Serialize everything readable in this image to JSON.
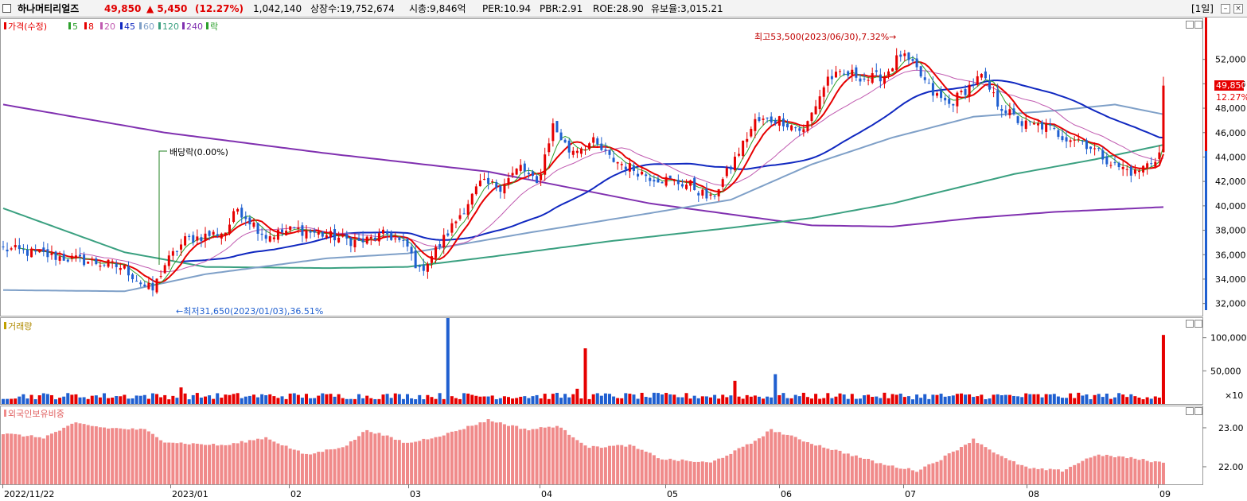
{
  "header": {
    "stock_name": "하나머티리얼즈",
    "price": "49,850",
    "change": "▲ 5,450",
    "change_pct": "(12.27%)",
    "volume": "1,042,140",
    "listed_shares": "상장수:19,752,674",
    "market_cap": "시총:9,846억",
    "per": "PER:10.94",
    "pbr": "PBR:2.91",
    "roe": "ROE:28.90",
    "retention": "유보율:3,015.21",
    "period": "[1일]"
  },
  "legend": {
    "price_label": "가격(수정)",
    "ma5": "5",
    "ma8": "8",
    "ma20": "20",
    "ma45": "45",
    "ma60": "60",
    "ma120": "120",
    "ma240": "240",
    "ex_label": "락",
    "volume_label": "거래량",
    "foreign_label": "외국인보유비중"
  },
  "colors": {
    "up": "#e60000",
    "down": "#1f5fd0",
    "ma5": "#2ca02c",
    "ma8": "#e60000",
    "ma20": "#c05ab0",
    "ma45": "#1028c0",
    "ma60": "#7fa0c8",
    "ma120": "#3aa080",
    "ma240": "#8030b0",
    "foreign_bar": "#f08a8a"
  },
  "chart_data": [
    {
      "type": "candlestick",
      "ylim": [
        31000,
        55300
      ],
      "y_ticks": [
        "52,000",
        "50,000",
        "48,000",
        "46,000",
        "44,000",
        "42,000",
        "40,000",
        "38,000",
        "36,000",
        "34,000",
        "32,000"
      ],
      "x_ticks": [
        "2022/11/22",
        "2023/01",
        "02",
        "03",
        "04",
        "05",
        "06",
        "07",
        "08",
        "09"
      ],
      "last_price_label": "49,850",
      "last_pct_label": "12.27%",
      "annotations": {
        "high": "최고53,500(2023/06/30),7.32%→",
        "low": "←최저31,650(2023/01/03),36.51%",
        "dividend": "배당락(0.00%)"
      },
      "anchors": [
        [
          0,
          36500
        ],
        [
          10,
          36000
        ],
        [
          18,
          35600
        ],
        [
          26,
          35200
        ],
        [
          30,
          34900
        ],
        [
          35,
          33400
        ],
        [
          37,
          33100
        ],
        [
          40,
          35200
        ],
        [
          45,
          37200
        ],
        [
          55,
          37900
        ],
        [
          58,
          39800
        ],
        [
          65,
          37500
        ],
        [
          72,
          38100
        ],
        [
          80,
          37600
        ],
        [
          88,
          37000
        ],
        [
          95,
          37700
        ],
        [
          100,
          36600
        ],
        [
          103,
          34600
        ],
        [
          108,
          36800
        ],
        [
          112,
          38800
        ],
        [
          118,
          41800
        ],
        [
          123,
          41600
        ],
        [
          128,
          43200
        ],
        [
          132,
          41700
        ],
        [
          136,
          46600
        ],
        [
          140,
          44500
        ],
        [
          146,
          45200
        ],
        [
          150,
          43900
        ],
        [
          160,
          42400
        ],
        [
          170,
          41700
        ],
        [
          175,
          40500
        ],
        [
          180,
          43200
        ],
        [
          186,
          46900
        ],
        [
          192,
          47100
        ],
        [
          198,
          46100
        ],
        [
          204,
          50500
        ],
        [
          210,
          50800
        ],
        [
          214,
          50400
        ],
        [
          218,
          50700
        ],
        [
          222,
          52400
        ],
        [
          226,
          51100
        ],
        [
          230,
          49200
        ],
        [
          234,
          48300
        ],
        [
          238,
          49500
        ],
        [
          242,
          50600
        ],
        [
          246,
          48400
        ],
        [
          252,
          46700
        ],
        [
          258,
          46500
        ],
        [
          262,
          45700
        ],
        [
          266,
          45500
        ],
        [
          270,
          44600
        ],
        [
          275,
          43300
        ],
        [
          280,
          42700
        ],
        [
          284,
          43600
        ],
        [
          286,
          44300
        ],
        [
          287,
          49850
        ]
      ],
      "moving_averages": {
        "ma120_anchors": [
          [
            0,
            39800
          ],
          [
            30,
            36200
          ],
          [
            50,
            35000
          ],
          [
            80,
            34900
          ],
          [
            100,
            35000
          ],
          [
            120,
            35800
          ],
          [
            150,
            37100
          ],
          [
            180,
            38200
          ],
          [
            200,
            39000
          ],
          [
            220,
            40200
          ],
          [
            250,
            42600
          ],
          [
            270,
            43800
          ],
          [
            287,
            45000
          ]
        ],
        "ma240_anchors": [
          [
            0,
            48300
          ],
          [
            40,
            46000
          ],
          [
            80,
            44300
          ],
          [
            120,
            42800
          ],
          [
            160,
            40200
          ],
          [
            180,
            39300
          ],
          [
            200,
            38400
          ],
          [
            220,
            38300
          ],
          [
            240,
            39000
          ],
          [
            260,
            39500
          ],
          [
            287,
            39900
          ]
        ],
        "ma60_anchors": [
          [
            0,
            33100
          ],
          [
            30,
            33000
          ],
          [
            50,
            34400
          ],
          [
            80,
            35700
          ],
          [
            100,
            36100
          ],
          [
            130,
            37800
          ],
          [
            160,
            39400
          ],
          [
            180,
            40500
          ],
          [
            200,
            43400
          ],
          [
            220,
            45600
          ],
          [
            240,
            47300
          ],
          [
            260,
            47800
          ],
          [
            275,
            48300
          ],
          [
            287,
            47500
          ]
        ]
      }
    },
    {
      "type": "bar",
      "name": "거래량",
      "ylim": [
        0,
        120000
      ],
      "y_ticks": [
        "100,000",
        "50,000"
      ],
      "unit": "×10",
      "spikes": [
        [
          44,
          25000
        ],
        [
          110,
          150000
        ],
        [
          142,
          23000
        ],
        [
          144,
          84000
        ],
        [
          181,
          35000
        ],
        [
          191,
          45000
        ],
        [
          287,
          104214
        ]
      ]
    },
    {
      "type": "bar",
      "name": "외국인보유비중",
      "ylim": [
        21.55,
        23.55
      ],
      "y_ticks": [
        "23.00",
        "22.00"
      ],
      "anchors": [
        [
          0,
          22.85
        ],
        [
          10,
          22.75
        ],
        [
          18,
          23.12
        ],
        [
          25,
          23.0
        ],
        [
          35,
          22.95
        ],
        [
          40,
          22.65
        ],
        [
          45,
          22.6
        ],
        [
          55,
          22.55
        ],
        [
          65,
          22.75
        ],
        [
          75,
          22.3
        ],
        [
          85,
          22.55
        ],
        [
          90,
          22.95
        ],
        [
          100,
          22.6
        ],
        [
          110,
          22.85
        ],
        [
          120,
          23.2
        ],
        [
          130,
          22.95
        ],
        [
          137,
          23.05
        ],
        [
          145,
          22.5
        ],
        [
          155,
          22.55
        ],
        [
          163,
          22.2
        ],
        [
          175,
          22.1
        ],
        [
          185,
          22.6
        ],
        [
          190,
          22.95
        ],
        [
          200,
          22.6
        ],
        [
          210,
          22.3
        ],
        [
          218,
          22.05
        ],
        [
          226,
          21.9
        ],
        [
          232,
          22.2
        ],
        [
          240,
          22.7
        ],
        [
          248,
          22.2
        ],
        [
          254,
          21.95
        ],
        [
          262,
          21.9
        ],
        [
          270,
          22.3
        ],
        [
          277,
          22.25
        ],
        [
          287,
          22.1
        ]
      ]
    }
  ]
}
